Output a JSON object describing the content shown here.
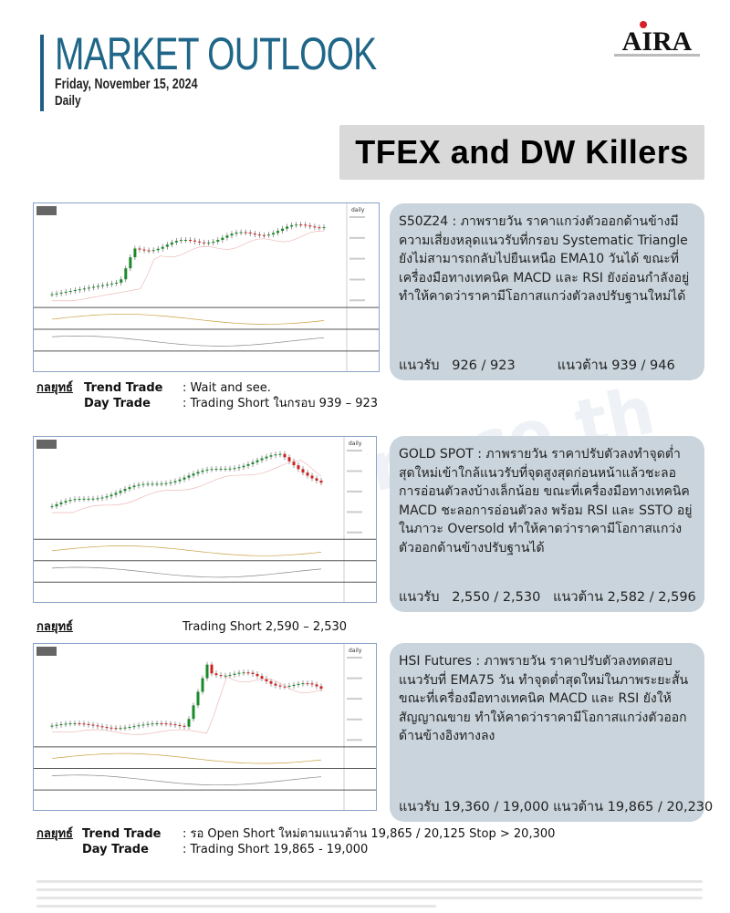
{
  "header": {
    "title": "MARKET OUTLOOK",
    "date": "Friday, November 15, 2024",
    "frequency": "Daily",
    "logo_text": "AIRA",
    "logo_sub": "SECURITIES PUBLIC COMPANY LIMITED",
    "brand_color": "#1f6688"
  },
  "banner": {
    "title": "TFEX and DW Killers"
  },
  "watermark": "www.aira.co.th",
  "sections": [
    {
      "chart_label": "daily",
      "analysis": "S50Z24 :  ภาพรายวัน ราคาแกว่งตัวออกด้านข้างมีความเสี่ยงหลุดแนวรับที่กรอบ Systematic Triangle ยังไม่สามารถกลับไปยืนเหนือ EMA10 วันได้ ขณะที่เครื่องมือทางเทคนิค MACD และ RSI ยังอ่อนกำลังอยู่ ทำให้คาดว่าราคามีโอกาสแกว่งตัวลงปรับฐานใหม่ได้",
      "levels": "แนวรับ   926 / 923          แนวต้าน 939 / 946",
      "strategy": {
        "label": "กลยุทธ์",
        "rows": [
          {
            "name": "Trend Trade",
            "value": ": Wait and see."
          },
          {
            "name": "Day Trade",
            "value": ": Trading Short ในกรอบ 939 – 923"
          }
        ]
      }
    },
    {
      "chart_label": "daily",
      "analysis": "GOLD SPOT :  ภาพรายวัน ราคาปรับตัวลงทำจุดต่ำสุดใหม่เข้าใกล้แนวรับที่จุดสูงสุดก่อนหน้าแล้วชะลอการอ่อนตัวลงบ้างเล็กน้อย ขณะที่เครื่องมือทางเทคนิค MACD ชะลอการอ่อนตัวลง พร้อม RSI และ SSTO อยู่ในภาวะ Oversold ทำให้คาดว่าราคามีโอกาสแกว่งตัวออกด้านข้างปรับฐานได้",
      "levels": "แนวรับ   2,550 / 2,530   แนวต้าน 2,582 / 2,596",
      "strategy": {
        "label": "กลยุทธ์",
        "rows": [
          {
            "name": "",
            "value": "Trading Short 2,590 – 2,530"
          }
        ]
      }
    },
    {
      "chart_label": "daily",
      "analysis": "HSI Futures :  ภาพรายวัน ราคาปรับตัวลงทดสอบแนวรับที่ EMA75 วัน ทำจุดต่ำสุดใหม่ในภาพระยะสั้น ขณะที่เครื่องมือทางเทคนิค MACD และ RSI ยังให้สัญญาณขาย ทำให้คาดว่าราคามีโอกาสแกว่งตัวออกด้านข้างอิงทางลง",
      "levels": "แนวรับ 19,360 / 19,000 แนวต้าน 19,865 / 20,230",
      "strategy": {
        "label": "กลยุทธ์",
        "rows": [
          {
            "name": "Trend Trade",
            "value": ": รอ Open Short ใหม่ตามแนวต้าน 19,865 / 20,125 Stop > 20,300"
          },
          {
            "name": "Day Trade",
            "value": ": Trading Short 19,865 - 19,000"
          }
        ]
      }
    }
  ]
}
